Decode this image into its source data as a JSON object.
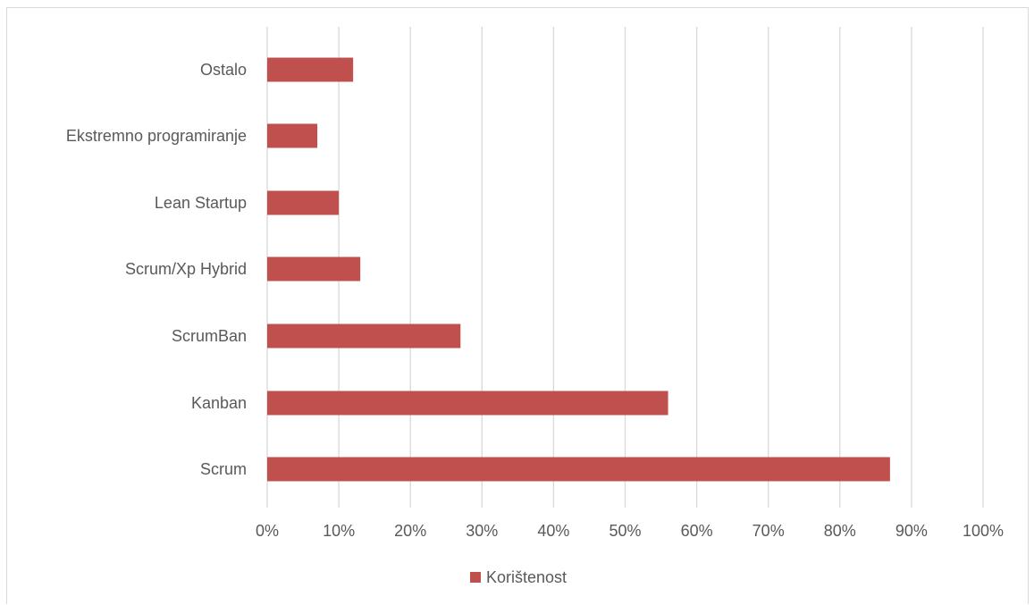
{
  "chart_data": {
    "type": "bar",
    "orientation": "horizontal",
    "categories": [
      "Scrum",
      "Kanban",
      "ScrumBan",
      "Scrum/Xp Hybrid",
      "Lean Startup",
      "Ekstremno programiranje",
      "Ostalo"
    ],
    "series": [
      {
        "name": "Korištenost",
        "values": [
          0.87,
          0.56,
          0.27,
          0.13,
          0.1,
          0.07,
          0.12
        ],
        "color": "#c0504d"
      }
    ],
    "x_ticks": [
      "0%",
      "10%",
      "20%",
      "30%",
      "40%",
      "50%",
      "60%",
      "70%",
      "80%",
      "90%",
      "100%"
    ],
    "xlim": [
      0,
      1
    ],
    "title": "",
    "xlabel": "",
    "ylabel": "",
    "grid": "vertical",
    "legend": "bottom",
    "gridline_color": "#d9d9d9",
    "label_color": "#595959"
  }
}
